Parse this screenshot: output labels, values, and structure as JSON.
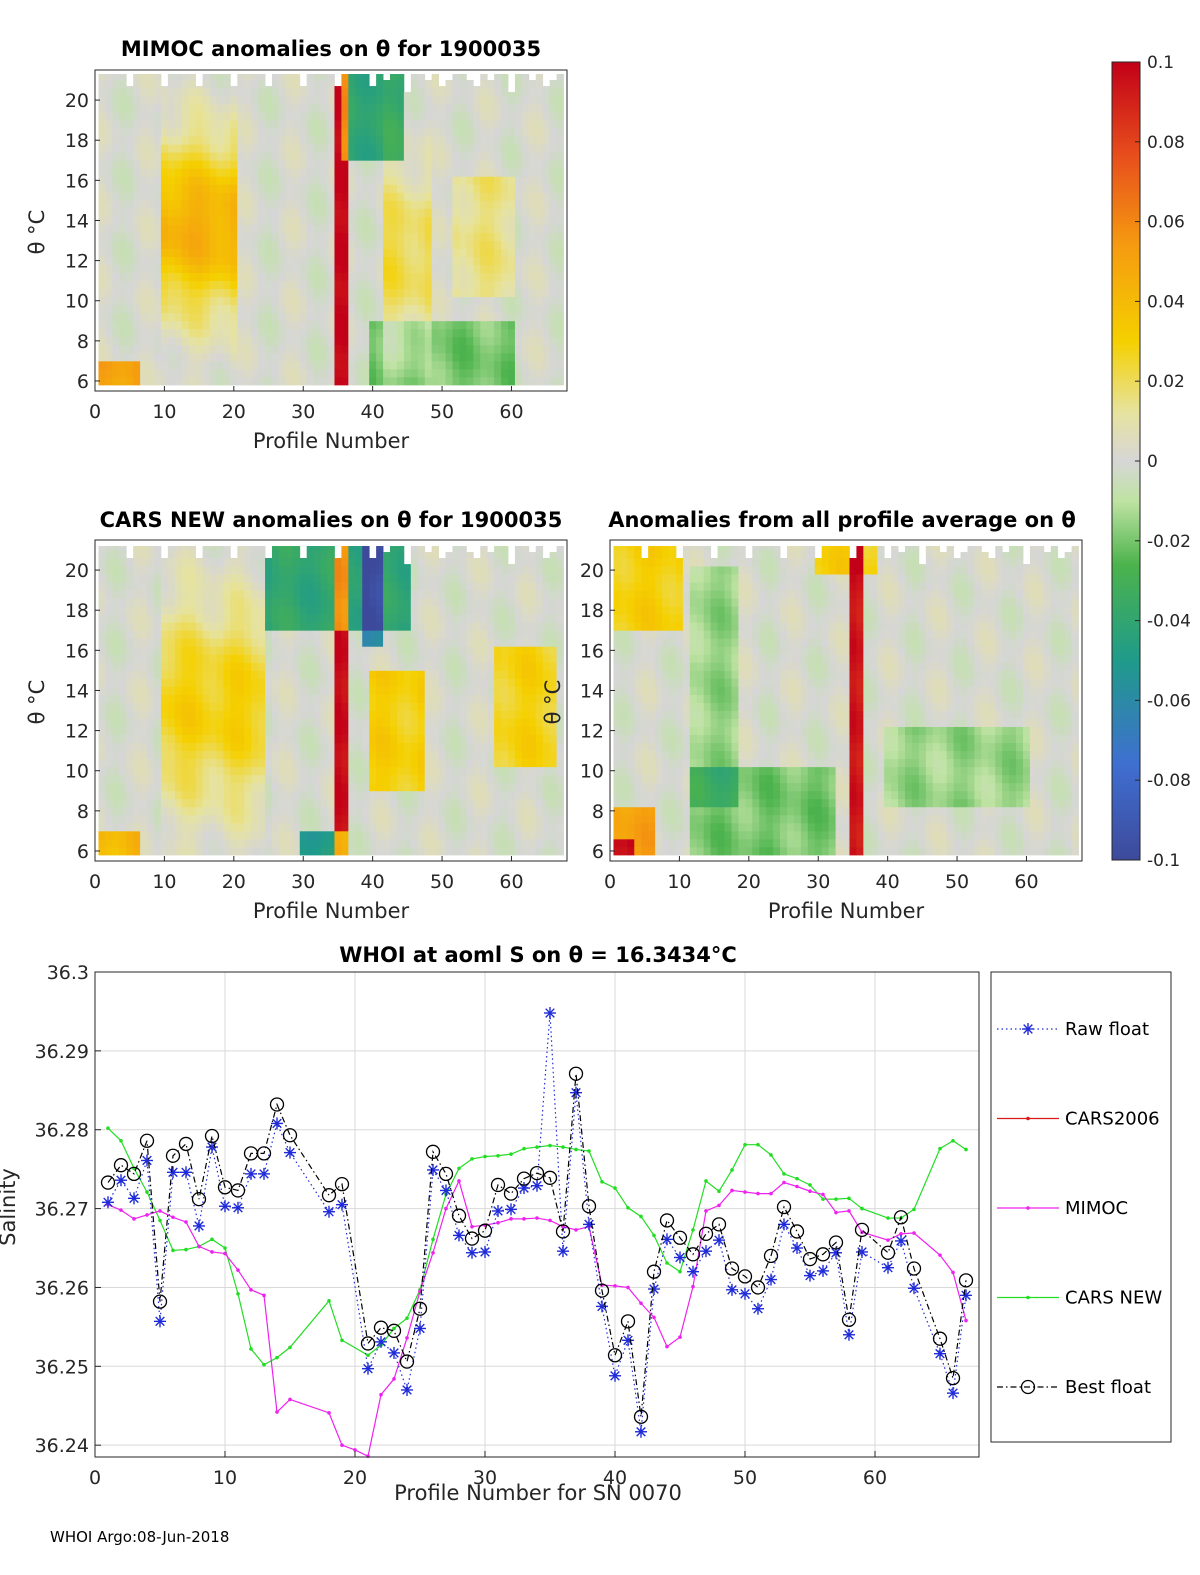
{
  "colors": {
    "raw_float": "#1f2bd8",
    "cars2006": "#d91a1a",
    "mimoc": "#ee22ee",
    "cars_new": "#22dd22",
    "best_float": "#000000"
  },
  "footer": "WHOI Argo:08-Jun-2018",
  "heatmaps": [
    {
      "title": "MIMOC anomalies on θ  for 1900035",
      "xlabel": "Profile Number",
      "ylabel": "θ °C",
      "xticks": [
        "0",
        "10",
        "20",
        "30",
        "40",
        "50",
        "60"
      ],
      "yticks": [
        "6",
        "8",
        "10",
        "12",
        "14",
        "16",
        "18",
        "20"
      ],
      "xrange": [
        0,
        68
      ],
      "yrange": [
        5.5,
        21.5
      ]
    },
    {
      "title": "CARS NEW anomalies on θ for 1900035",
      "xlabel": "Profile Number",
      "ylabel": "θ °C",
      "xticks": [
        "0",
        "10",
        "20",
        "30",
        "40",
        "50",
        "60"
      ],
      "yticks": [
        "6",
        "8",
        "10",
        "12",
        "14",
        "16",
        "18",
        "20"
      ],
      "xrange": [
        0,
        68
      ],
      "yrange": [
        5.5,
        21.5
      ]
    },
    {
      "title": "Anomalies from all profile average on θ",
      "xlabel": "Profile Number",
      "ylabel": "θ °C",
      "xticks": [
        "0",
        "10",
        "20",
        "30",
        "40",
        "50",
        "60"
      ],
      "yticks": [
        "6",
        "8",
        "10",
        "12",
        "14",
        "16",
        "18",
        "20"
      ],
      "xrange": [
        0,
        68
      ],
      "yrange": [
        5.5,
        21.5
      ]
    }
  ],
  "colorbar": {
    "ticks": [
      "0.1",
      "0.08",
      "0.06",
      "0.04",
      "0.02",
      "0",
      "-0.02",
      "-0.04",
      "-0.06",
      "-0.08",
      "-0.1"
    ],
    "range": [
      -0.1,
      0.1
    ]
  },
  "chart_data": {
    "type": "line",
    "title": "WHOI at aoml S on θ = 16.3434°C",
    "xlabel": "Profile Number for SN 0070",
    "ylabel": "Salinity",
    "xlim": [
      0,
      68
    ],
    "ylim": [
      36.2385,
      36.3
    ],
    "xticks": [
      "0",
      "10",
      "20",
      "30",
      "40",
      "50",
      "60"
    ],
    "yticks": [
      "36.24",
      "36.25",
      "36.26",
      "36.27",
      "36.28",
      "36.29",
      "36.3"
    ],
    "grid": true,
    "legend_position": "right",
    "legend": [
      "Raw float",
      "CARS2006",
      "MIMOC",
      "CARS NEW",
      "Best float"
    ],
    "series": [
      {
        "name": "Raw float",
        "x": [
          1,
          2,
          3,
          4,
          5,
          6,
          7,
          8,
          9,
          10,
          11,
          12,
          13,
          14,
          15,
          18,
          19,
          21,
          22,
          23,
          24,
          25,
          26,
          27,
          28,
          29,
          30,
          31,
          32,
          33,
          34,
          35,
          36,
          37,
          38,
          39,
          40,
          41,
          42,
          43,
          44,
          45,
          46,
          47,
          48,
          49,
          50,
          51,
          52,
          53,
          54,
          55,
          56,
          57,
          58,
          59,
          61,
          62,
          63,
          65,
          66,
          67
        ],
        "values": [
          36.2708,
          36.2736,
          36.2713,
          36.2761,
          36.2557,
          36.2746,
          36.2746,
          36.2678,
          36.2778,
          36.2703,
          36.2701,
          36.2744,
          36.2744,
          36.2808,
          36.2771,
          36.2696,
          36.2705,
          36.2497,
          36.2531,
          36.2517,
          36.247,
          36.2548,
          36.2749,
          36.2723,
          36.2666,
          36.2644,
          36.2645,
          36.2697,
          36.2699,
          36.2726,
          36.2729,
          36.2948,
          36.2646,
          36.2847,
          36.268,
          36.2576,
          36.2488,
          36.2533,
          36.2417,
          36.2598,
          36.2661,
          36.2638,
          36.262,
          36.2646,
          36.266,
          36.2597,
          36.2592,
          36.2573,
          36.261,
          36.268,
          36.265,
          36.2615,
          36.2621,
          36.2644,
          36.254,
          36.2645,
          36.2625,
          36.2659,
          36.2599,
          36.2516,
          36.2466,
          36.259
        ]
      },
      {
        "name": "CARS2006",
        "x": [],
        "values": []
      },
      {
        "name": "MIMOC",
        "x": [
          1,
          2,
          3,
          4,
          5,
          6,
          7,
          8,
          9,
          10,
          11,
          12,
          13,
          14,
          15,
          18,
          19,
          20,
          21,
          22,
          23,
          24,
          25,
          26,
          27,
          28,
          29,
          30,
          31,
          32,
          33,
          34,
          35,
          36,
          37,
          38,
          39,
          40,
          41,
          42,
          43,
          44,
          45,
          46,
          47,
          48,
          49,
          50,
          51,
          52,
          53,
          54,
          55,
          56,
          57,
          58,
          59,
          61,
          62,
          63,
          65,
          66,
          67
        ],
        "values": [
          36.2705,
          36.2698,
          36.2687,
          36.2692,
          36.2697,
          36.2689,
          36.2683,
          36.2652,
          36.2645,
          36.2643,
          36.2622,
          36.2597,
          36.259,
          36.2442,
          36.2458,
          36.2441,
          36.24,
          36.2394,
          36.2386,
          36.2464,
          36.2484,
          36.2536,
          36.2595,
          36.2644,
          36.27,
          36.2735,
          36.2677,
          36.2679,
          36.2682,
          36.2687,
          36.2687,
          36.2688,
          36.2685,
          36.2677,
          36.2673,
          36.2677,
          36.2603,
          36.2602,
          36.26,
          36.258,
          36.2562,
          36.2525,
          36.2537,
          36.2601,
          36.2697,
          36.2704,
          36.2723,
          36.2721,
          36.2719,
          36.2719,
          36.2733,
          36.2728,
          36.2722,
          36.2718,
          36.2695,
          36.2697,
          36.267,
          36.266,
          36.2668,
          36.2669,
          36.2641,
          36.2619,
          36.2558
        ]
      },
      {
        "name": "CARS NEW",
        "x": [
          1,
          2,
          3,
          4,
          5,
          6,
          7,
          8,
          9,
          10,
          11,
          12,
          13,
          14,
          15,
          18,
          19,
          21,
          22,
          23,
          24,
          25,
          26,
          27,
          28,
          29,
          30,
          31,
          32,
          33,
          34,
          35,
          36,
          37,
          38,
          39,
          40,
          41,
          42,
          43,
          44,
          45,
          46,
          47,
          48,
          49,
          50,
          51,
          52,
          53,
          54,
          55,
          56,
          57,
          58,
          59,
          61,
          62,
          63,
          65,
          66,
          67
        ],
        "values": [
          36.2802,
          36.2786,
          36.2751,
          36.2721,
          36.2685,
          36.2647,
          36.2648,
          36.2652,
          36.2661,
          36.265,
          36.2592,
          36.2522,
          36.2502,
          36.2511,
          36.2524,
          36.2583,
          36.2533,
          36.2514,
          36.2527,
          36.2548,
          36.2561,
          36.2597,
          36.2661,
          36.2718,
          36.2751,
          36.2763,
          36.2766,
          36.2767,
          36.2769,
          36.2776,
          36.2778,
          36.278,
          36.2778,
          36.2775,
          36.2773,
          36.2734,
          36.2726,
          36.2701,
          36.269,
          36.2666,
          36.2631,
          36.262,
          36.2673,
          36.2735,
          36.2722,
          36.2749,
          36.2781,
          36.2781,
          36.2768,
          36.2744,
          36.2738,
          36.273,
          36.2712,
          36.2712,
          36.2713,
          36.27,
          36.2688,
          36.2688,
          36.2699,
          36.2776,
          36.2786,
          36.2775
        ]
      },
      {
        "name": "Best float",
        "x": [
          1,
          2,
          3,
          4,
          5,
          6,
          7,
          8,
          9,
          10,
          11,
          12,
          13,
          14,
          15,
          18,
          19,
          21,
          22,
          23,
          24,
          25,
          26,
          27,
          28,
          29,
          30,
          31,
          32,
          33,
          34,
          35,
          36,
          37,
          38,
          39,
          40,
          41,
          42,
          43,
          44,
          45,
          46,
          47,
          48,
          49,
          50,
          51,
          52,
          53,
          54,
          55,
          56,
          57,
          58,
          59,
          61,
          62,
          63,
          65,
          66,
          67
        ],
        "values": [
          36.2733,
          36.2755,
          36.2744,
          36.2786,
          36.2582,
          36.2767,
          36.2782,
          36.2712,
          36.2792,
          36.2727,
          36.2723,
          36.277,
          36.277,
          36.2832,
          36.2793,
          36.2717,
          36.2731,
          36.2529,
          36.2549,
          36.2545,
          36.2506,
          36.2573,
          36.2772,
          36.2744,
          36.2691,
          36.2662,
          36.2672,
          36.273,
          36.2719,
          36.2738,
          36.2745,
          36.2739,
          36.2671,
          36.2871,
          36.2703,
          36.2596,
          36.2514,
          36.2557,
          36.2436,
          36.262,
          36.2685,
          36.2663,
          36.2642,
          36.2668,
          36.268,
          36.2624,
          36.2614,
          36.26,
          36.264,
          36.2702,
          36.2671,
          36.2636,
          36.2642,
          36.2657,
          36.2559,
          36.2673,
          36.2644,
          36.2689,
          36.2624,
          36.2535,
          36.2485,
          36.2609
        ]
      }
    ]
  }
}
